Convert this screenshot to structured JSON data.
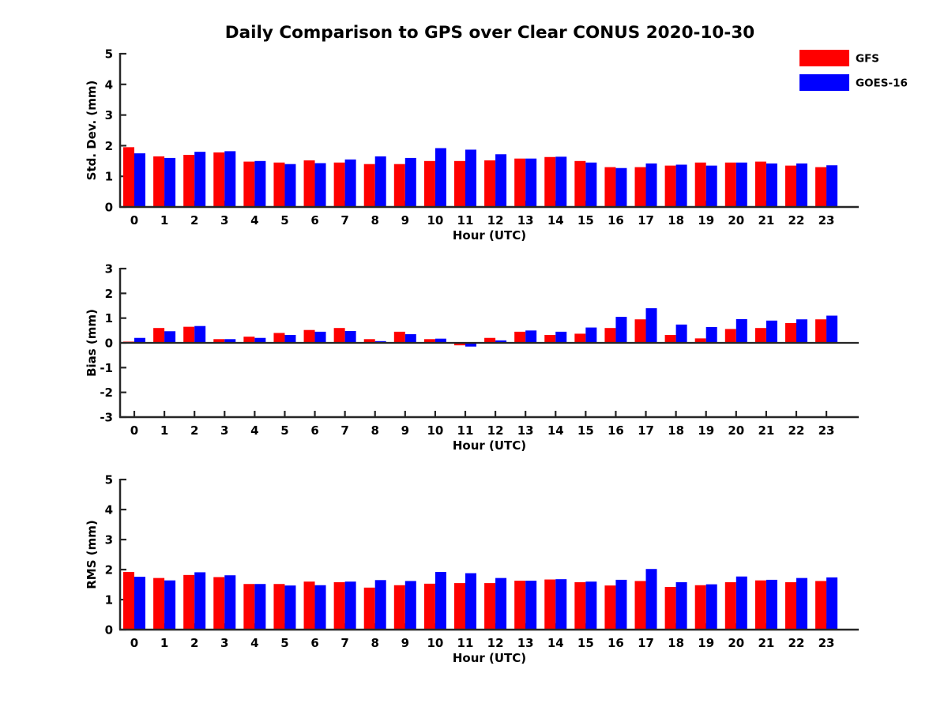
{
  "title": "Daily Comparison to GPS over Clear CONUS 2020-10-30",
  "legend": {
    "items": [
      {
        "label": "GFS",
        "color": "#ff0000"
      },
      {
        "label": "GOES-16",
        "color": "#0000ff"
      }
    ]
  },
  "colors": {
    "gfs": "#ff0000",
    "goes16": "#0000ff",
    "axis": "#262626",
    "text": "#000000"
  },
  "chart_data": [
    {
      "type": "bar",
      "title": "Daily Comparison to GPS over Clear CONUS 2020-10-30",
      "xlabel": "Hour (UTC)",
      "ylabel": "Std. Dev. (mm)",
      "ylim": [
        0,
        5
      ],
      "yticks": [
        0,
        1,
        2,
        3,
        4,
        5
      ],
      "grid": false,
      "legend_position": "upper-right-outside",
      "categories": [
        "0",
        "1",
        "2",
        "3",
        "4",
        "5",
        "6",
        "7",
        "8",
        "9",
        "10",
        "11",
        "12",
        "13",
        "14",
        "15",
        "16",
        "17",
        "18",
        "19",
        "20",
        "21",
        "22",
        "23"
      ],
      "series": [
        {
          "name": "GFS",
          "color": "#ff0000",
          "values": [
            1.95,
            1.65,
            1.7,
            1.78,
            1.48,
            1.45,
            1.52,
            1.45,
            1.4,
            1.4,
            1.5,
            1.5,
            1.52,
            1.58,
            1.63,
            1.5,
            1.3,
            1.3,
            1.35,
            1.45,
            1.45,
            1.48,
            1.35,
            1.3
          ]
        },
        {
          "name": "GOES-16",
          "color": "#0000ff",
          "values": [
            1.75,
            1.6,
            1.8,
            1.82,
            1.5,
            1.4,
            1.43,
            1.55,
            1.65,
            1.6,
            1.92,
            1.87,
            1.72,
            1.58,
            1.64,
            1.45,
            1.27,
            1.42,
            1.38,
            1.35,
            1.45,
            1.42,
            1.42,
            1.36
          ]
        }
      ]
    },
    {
      "type": "bar",
      "xlabel": "Hour (UTC)",
      "ylabel": "Bias (mm)",
      "ylim": [
        -3,
        3
      ],
      "yticks": [
        -3,
        -2,
        -1,
        0,
        1,
        2,
        3
      ],
      "grid": false,
      "categories": [
        "0",
        "1",
        "2",
        "3",
        "4",
        "5",
        "6",
        "7",
        "8",
        "9",
        "10",
        "11",
        "12",
        "13",
        "14",
        "15",
        "16",
        "17",
        "18",
        "19",
        "20",
        "21",
        "22",
        "23"
      ],
      "series": [
        {
          "name": "GFS",
          "color": "#ff0000",
          "values": [
            0.05,
            0.6,
            0.65,
            0.15,
            0.25,
            0.4,
            0.52,
            0.6,
            0.15,
            0.45,
            0.15,
            -0.1,
            0.2,
            0.45,
            0.32,
            0.37,
            0.6,
            0.95,
            0.32,
            0.18,
            0.56,
            0.6,
            0.8,
            0.95
          ]
        },
        {
          "name": "GOES-16",
          "color": "#0000ff",
          "values": [
            0.2,
            0.47,
            0.68,
            0.15,
            0.2,
            0.32,
            0.45,
            0.48,
            0.07,
            0.35,
            0.17,
            -0.15,
            0.1,
            0.5,
            0.45,
            0.62,
            1.05,
            1.4,
            0.74,
            0.64,
            0.96,
            0.9,
            0.95,
            1.1
          ]
        }
      ]
    },
    {
      "type": "bar",
      "xlabel": "Hour (UTC)",
      "ylabel": "RMS (mm)",
      "ylim": [
        0,
        5
      ],
      "yticks": [
        0,
        1,
        2,
        3,
        4,
        5
      ],
      "grid": false,
      "categories": [
        "0",
        "1",
        "2",
        "3",
        "4",
        "5",
        "6",
        "7",
        "8",
        "9",
        "10",
        "11",
        "12",
        "13",
        "14",
        "15",
        "16",
        "17",
        "18",
        "19",
        "20",
        "21",
        "22",
        "23"
      ],
      "series": [
        {
          "name": "GFS",
          "color": "#ff0000",
          "values": [
            1.92,
            1.72,
            1.82,
            1.75,
            1.52,
            1.52,
            1.6,
            1.58,
            1.4,
            1.48,
            1.53,
            1.55,
            1.55,
            1.63,
            1.67,
            1.58,
            1.47,
            1.62,
            1.42,
            1.48,
            1.58,
            1.64,
            1.58,
            1.62
          ]
        },
        {
          "name": "GOES-16",
          "color": "#0000ff",
          "values": [
            1.76,
            1.64,
            1.91,
            1.81,
            1.52,
            1.47,
            1.48,
            1.6,
            1.65,
            1.62,
            1.92,
            1.88,
            1.72,
            1.63,
            1.68,
            1.6,
            1.66,
            2.02,
            1.58,
            1.51,
            1.77,
            1.66,
            1.72,
            1.74
          ]
        }
      ]
    }
  ]
}
